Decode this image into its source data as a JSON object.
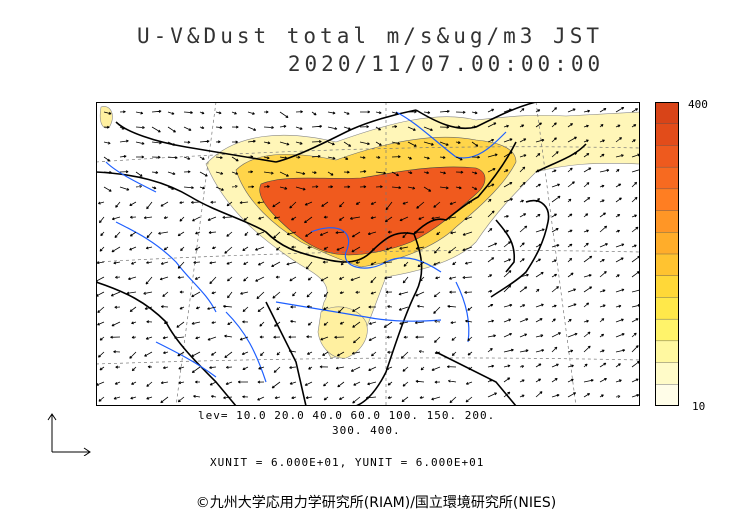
{
  "title": {
    "line1": "U-V&Dust total m/s&ug/m3 JST",
    "line2": "2020/11/07.00:00:00"
  },
  "colorbar": {
    "max_label": "400",
    "min_label": "10",
    "colors": [
      "#fffde8",
      "#fffbc8",
      "#fff8a0",
      "#fff36a",
      "#ffe84a",
      "#ffd838",
      "#ffc330",
      "#ffad2a",
      "#ff9626",
      "#ff7e22",
      "#f76a20",
      "#ee5a1e",
      "#e24c1a",
      "#d84418"
    ]
  },
  "levels": {
    "line1": "lev= 10.0 20.0 40.0 60.0 100. 150. 200.",
    "line2": "300. 400."
  },
  "units": "XUNIT = 6.000E+01, YUNIT = 6.000E+01",
  "credit": "©九州大学応用力学研究所(RIAM)/国立環境研究所(NIES)",
  "colors": {
    "dust_high": "#f05a1e",
    "dust_mid": "#ffd54a",
    "dust_low": "#fff6b8",
    "river": "#1e5fff",
    "coast": "#000000"
  }
}
